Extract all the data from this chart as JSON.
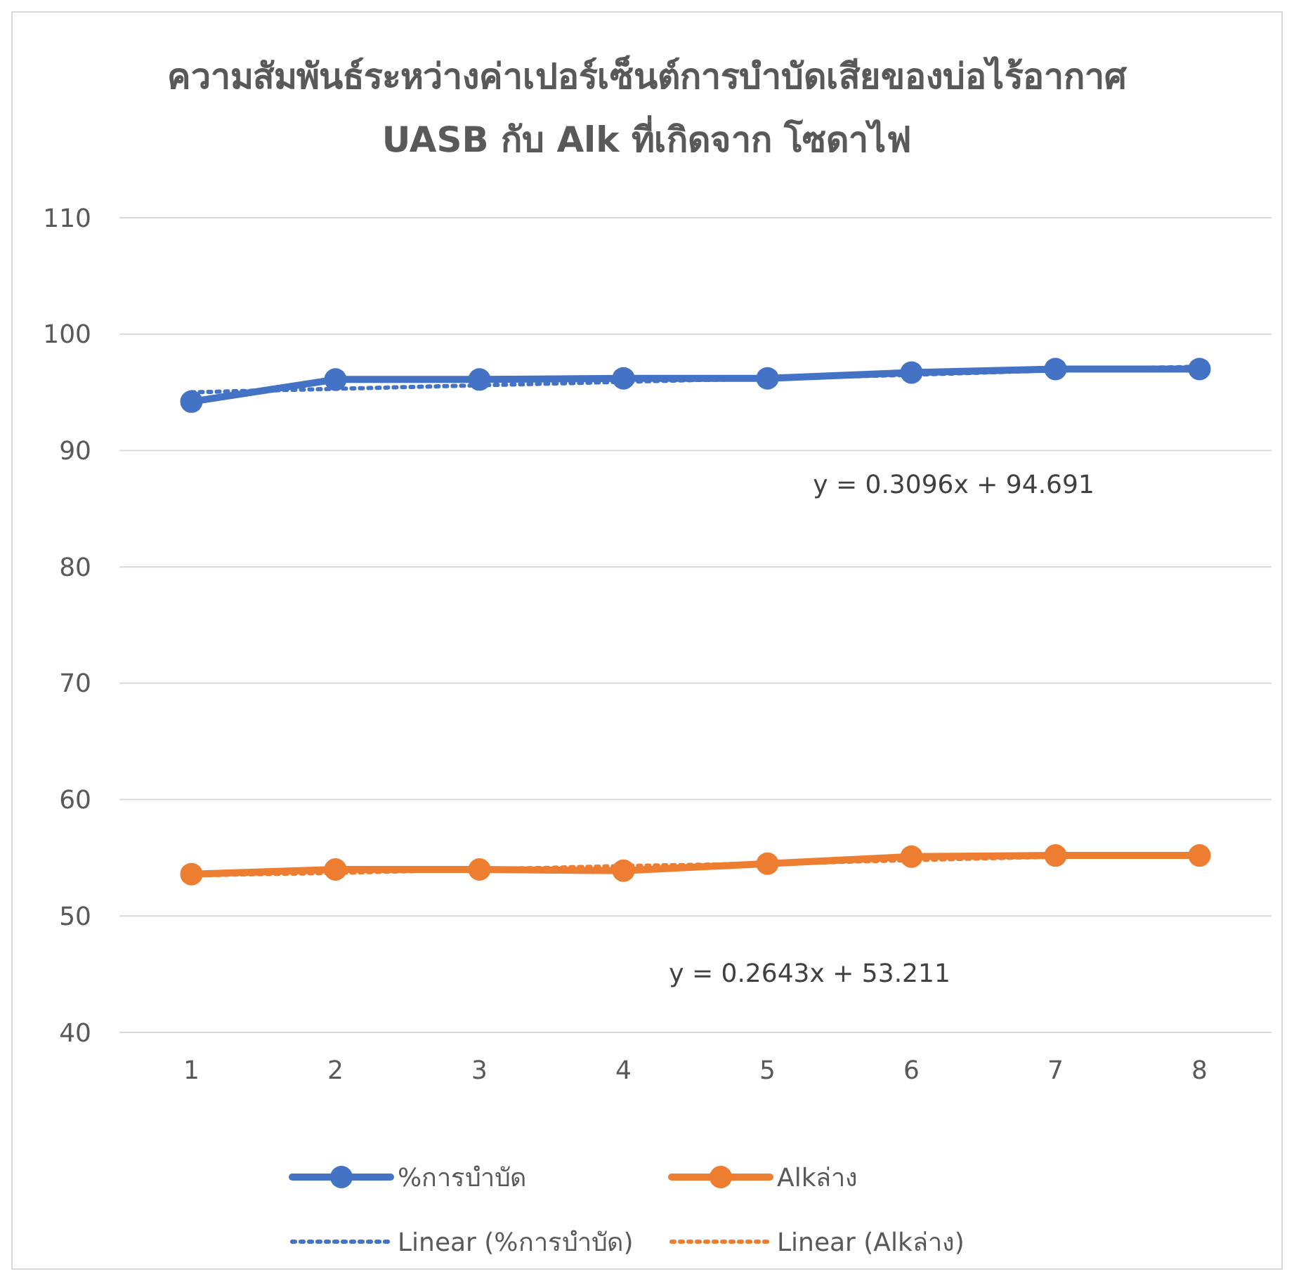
{
  "chart_data": {
    "type": "line",
    "title": "ความสัมพันธ์ระหว่างค่าเปอร์เซ็นต์การบำบัดเสียของบ่อไร้อากาศ UASB กับ Alk ที่เกิดจาก โซดาไฟ",
    "categories": [
      "1",
      "2",
      "3",
      "4",
      "5",
      "6",
      "7",
      "8"
    ],
    "series": [
      {
        "name": "%การบำบัด",
        "color": "#4472c4",
        "marker": "circle",
        "line_style": "solid",
        "values": [
          94.2,
          96.1,
          96.1,
          96.2,
          96.2,
          96.7,
          97.0,
          97.0
        ]
      },
      {
        "name": "Alkล่าง",
        "color": "#ed7d31",
        "marker": "circle",
        "line_style": "solid",
        "values": [
          53.6,
          54.0,
          54.0,
          53.9,
          54.5,
          55.1,
          55.2,
          55.2
        ]
      },
      {
        "name": "Linear (%การบำบัด)",
        "color": "#4472c4",
        "marker": "none",
        "line_style": "dotted",
        "values": [
          95.0,
          95.3,
          95.6,
          95.9,
          96.2,
          96.5,
          96.9,
          97.2
        ]
      },
      {
        "name": "Linear (Alkล่าง)",
        "color": "#ed7d31",
        "marker": "none",
        "line_style": "dotted",
        "values": [
          53.5,
          53.7,
          54.0,
          54.3,
          54.5,
          54.8,
          55.1,
          55.3
        ]
      }
    ],
    "ylim": [
      40,
      110
    ],
    "yticks": [
      40,
      50,
      60,
      70,
      80,
      90,
      100,
      110
    ],
    "grid": "y",
    "legend": "bottom",
    "annotations": [
      "y = 0.3096x + 94.691",
      "y = 0.2643x + 53.211"
    ]
  }
}
